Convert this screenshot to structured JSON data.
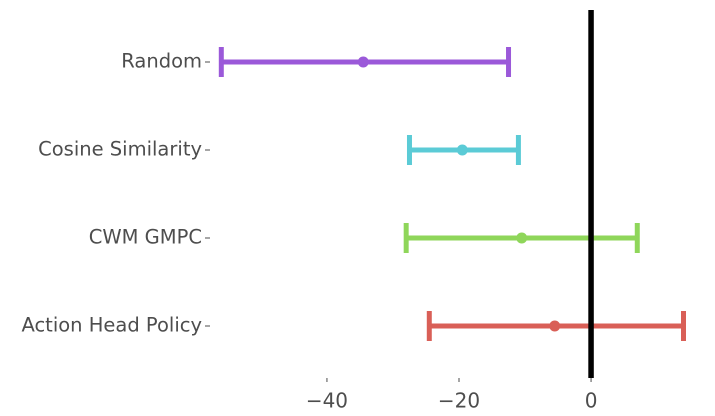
{
  "chart_data": {
    "type": "errorbar",
    "title": "",
    "xlabel": "",
    "ylabel": "",
    "xlim": [
      -56.5,
      16.5
    ],
    "x_ticks": [
      -40,
      -20,
      0
    ],
    "x_tick_labels": [
      "−40",
      "−20",
      "0"
    ],
    "reference_line": 0,
    "grid": false,
    "series": [
      {
        "label": "Random",
        "point": -34.5,
        "ci": [
          -56.0,
          -12.5
        ],
        "color": "#9b59d9"
      },
      {
        "label": "Cosine Similarity",
        "point": -19.5,
        "ci": [
          -27.5,
          -11.0
        ],
        "color": "#5bcbd6"
      },
      {
        "label": "CWM GMPC",
        "point": -10.5,
        "ci": [
          -28.0,
          7.0
        ],
        "color": "#8fd65a"
      },
      {
        "label": "Action Head Policy",
        "point": -5.5,
        "ci": [
          -24.5,
          14.0
        ],
        "color": "#d95f57"
      }
    ]
  }
}
